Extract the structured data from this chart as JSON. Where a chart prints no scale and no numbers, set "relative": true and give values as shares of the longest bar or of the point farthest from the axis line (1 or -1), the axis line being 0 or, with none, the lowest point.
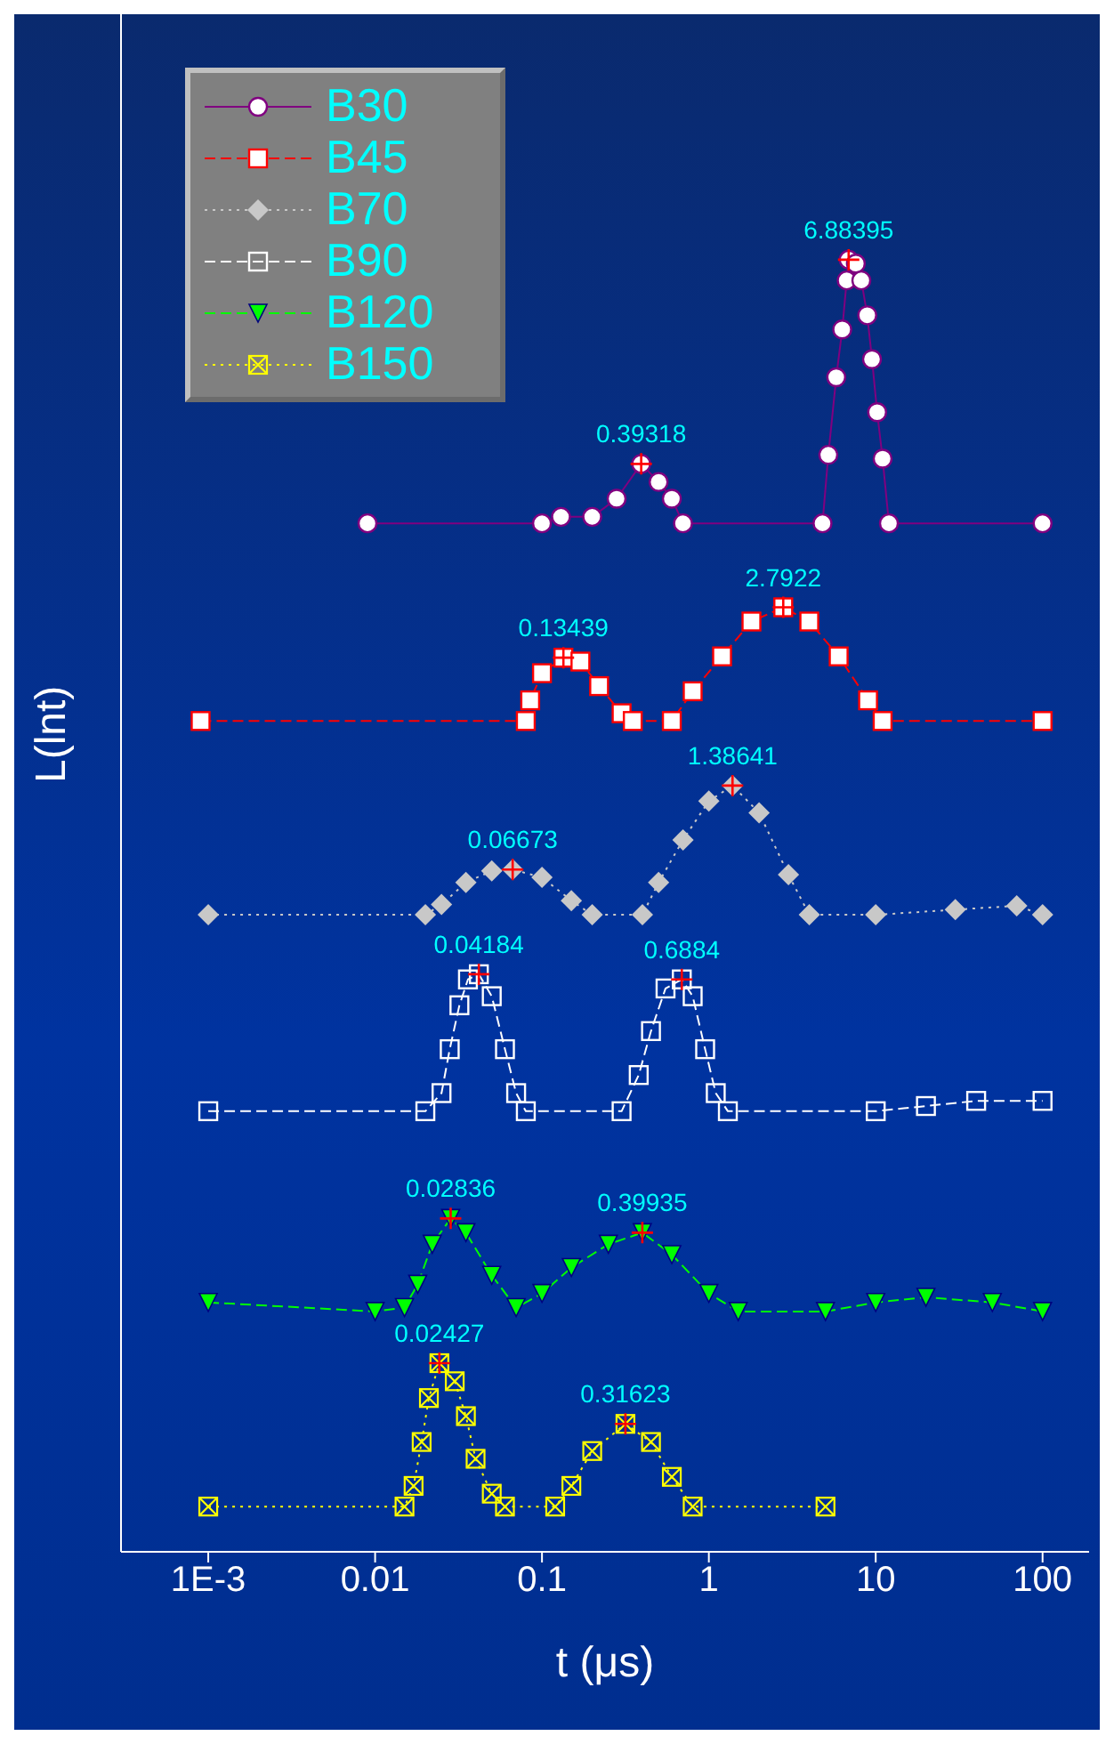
{
  "chart_data": {
    "type": "line",
    "relative": true,
    "xlabel": "t (μs)",
    "ylabel": "L(lnt)",
    "log": "x",
    "xlim": [
      0.0003,
      190
    ],
    "xticks": [
      {
        "value": 0.001,
        "label": "1E-3"
      },
      0.01,
      0.1,
      1,
      10,
      100
    ],
    "grid": false,
    "legend": "top left",
    "series": [
      {
        "name": "B30",
        "color": "#800080",
        "marker": "circle",
        "line_style": "solid",
        "x": [
          0.009,
          0.1,
          0.13,
          0.2,
          0.28,
          0.39318,
          0.5,
          0.6,
          0.7,
          4.8,
          5.2,
          5.8,
          6.3,
          6.7,
          6.88395,
          7.6,
          8.2,
          8.9,
          9.5,
          10.2,
          11,
          12,
          100
        ],
        "values": [
          0.796,
          0.796,
          0.801,
          0.801,
          0.815,
          0.842,
          0.828,
          0.815,
          0.796,
          0.796,
          0.849,
          0.909,
          0.946,
          0.984,
          1.0,
          0.997,
          0.984,
          0.957,
          0.923,
          0.882,
          0.846,
          0.796,
          0.796
        ]
      },
      {
        "name": "B45",
        "color": "#ff0000",
        "marker": "square",
        "line_style": "dashed",
        "x": [
          0.0009,
          0.08,
          0.085,
          0.1,
          0.13439,
          0.17,
          0.22,
          0.3,
          0.35,
          0.6,
          0.8,
          1.2,
          1.8,
          2.7922,
          4,
          6,
          9,
          11,
          100
        ],
        "values": [
          0.643,
          0.643,
          0.659,
          0.68,
          0.692,
          0.689,
          0.67,
          0.649,
          0.643,
          0.643,
          0.666,
          0.693,
          0.72,
          0.731,
          0.72,
          0.693,
          0.659,
          0.643,
          0.643
        ]
      },
      {
        "name": "B70",
        "color": "#c8c8c8",
        "marker": "diamond",
        "line_style": "dotted",
        "x": [
          0.001,
          0.02,
          0.025,
          0.035,
          0.05,
          0.06673,
          0.1,
          0.15,
          0.2,
          0.4,
          0.5,
          0.7,
          1,
          1.38641,
          2,
          3,
          4,
          10,
          30,
          70,
          100
        ],
        "values": [
          0.493,
          0.493,
          0.501,
          0.518,
          0.527,
          0.528,
          0.522,
          0.504,
          0.493,
          0.493,
          0.518,
          0.551,
          0.581,
          0.593,
          0.572,
          0.524,
          0.493,
          0.493,
          0.497,
          0.5,
          0.493
        ]
      },
      {
        "name": "B90",
        "color": "#ffffff",
        "marker": "square",
        "line_style": "dashed",
        "x": [
          0.001,
          0.02,
          0.025,
          0.028,
          0.032,
          0.036,
          0.04184,
          0.05,
          0.06,
          0.07,
          0.08,
          0.3,
          0.38,
          0.45,
          0.55,
          0.6884,
          0.8,
          0.95,
          1.1,
          1.3,
          10,
          20,
          40,
          100
        ],
        "values": [
          0.341,
          0.341,
          0.355,
          0.389,
          0.423,
          0.443,
          0.447,
          0.43,
          0.389,
          0.355,
          0.341,
          0.341,
          0.369,
          0.403,
          0.436,
          0.443,
          0.43,
          0.389,
          0.355,
          0.341,
          0.341,
          0.345,
          0.349,
          0.349
        ]
      },
      {
        "name": "B120",
        "color": "#00ff00",
        "marker": "triangle",
        "line_style": "dashed",
        "x": [
          0.001,
          0.01,
          0.015,
          0.018,
          0.022,
          0.02836,
          0.035,
          0.05,
          0.07,
          0.1,
          0.15,
          0.25,
          0.39935,
          0.6,
          1,
          1.5,
          5,
          10,
          20,
          50,
          100
        ],
        "values": [
          0.193,
          0.186,
          0.189,
          0.207,
          0.238,
          0.258,
          0.247,
          0.214,
          0.189,
          0.2,
          0.22,
          0.238,
          0.247,
          0.23,
          0.2,
          0.186,
          0.186,
          0.193,
          0.197,
          0.193,
          0.186
        ]
      },
      {
        "name": "B150",
        "color": "#ffff00",
        "marker": "square",
        "line_style": "dotted",
        "x": [
          0.001,
          0.015,
          0.017,
          0.019,
          0.021,
          0.02427,
          0.03,
          0.035,
          0.04,
          0.05,
          0.06,
          0.12,
          0.15,
          0.2,
          0.31623,
          0.45,
          0.6,
          0.8,
          5
        ],
        "values": [
          0.035,
          0.035,
          0.051,
          0.085,
          0.119,
          0.146,
          0.132,
          0.105,
          0.072,
          0.045,
          0.035,
          0.035,
          0.051,
          0.078,
          0.099,
          0.085,
          0.058,
          0.035,
          0.035
        ]
      }
    ],
    "annotations": [
      {
        "text": "0.39318",
        "x": 0.39318,
        "y": 0.842
      },
      {
        "text": "6.88395",
        "x": 6.88395,
        "y": 1.0
      },
      {
        "text": "0.13439",
        "x": 0.13439,
        "y": 0.692
      },
      {
        "text": "2.7922",
        "x": 2.7922,
        "y": 0.731
      },
      {
        "text": "0.06673",
        "x": 0.06673,
        "y": 0.528
      },
      {
        "text": "1.38641",
        "x": 1.38641,
        "y": 0.593
      },
      {
        "text": "0.04184",
        "x": 0.04184,
        "y": 0.447
      },
      {
        "text": "0.6884",
        "x": 0.6884,
        "y": 0.443
      },
      {
        "text": "0.02836",
        "x": 0.02836,
        "y": 0.258
      },
      {
        "text": "0.39935",
        "x": 0.39935,
        "y": 0.247
      },
      {
        "text": "0.02427",
        "x": 0.02427,
        "y": 0.146
      },
      {
        "text": "0.31623",
        "x": 0.31623,
        "y": 0.099
      }
    ]
  }
}
